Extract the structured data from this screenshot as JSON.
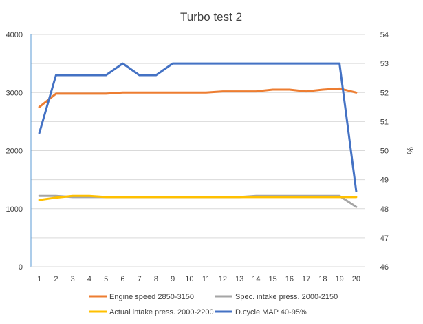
{
  "chart_data": {
    "type": "line",
    "title": "Turbo test 2",
    "categories": [
      "1",
      "2",
      "3",
      "4",
      "5",
      "6",
      "7",
      "8",
      "9",
      "10",
      "11",
      "12",
      "13",
      "14",
      "15",
      "16",
      "17",
      "18",
      "19",
      "20"
    ],
    "y_left": {
      "ylim": [
        0,
        4000
      ],
      "ticks": [
        "0",
        "1000",
        "2000",
        "3000",
        "4000"
      ]
    },
    "y_right": {
      "ylim": [
        46,
        54
      ],
      "ticks": [
        "46",
        "47",
        "48",
        "49",
        "50",
        "51",
        "52",
        "53",
        "54"
      ],
      "label": "%"
    },
    "grid": true,
    "legend_position": "bottom",
    "series": [
      {
        "name": "Engine speed 2850-3150",
        "axis": "left",
        "color": "#ED7D31",
        "values": [
          2750,
          2980,
          2980,
          2980,
          2980,
          3000,
          3000,
          3000,
          3000,
          3000,
          3000,
          3020,
          3020,
          3020,
          3050,
          3050,
          3020,
          3050,
          3070,
          3000
        ]
      },
      {
        "name": "Spec. intake press. 2000-2150",
        "axis": "left",
        "color": "#A5A5A5",
        "values": [
          1220,
          1220,
          1200,
          1200,
          1200,
          1200,
          1200,
          1200,
          1200,
          1200,
          1200,
          1200,
          1200,
          1220,
          1220,
          1220,
          1220,
          1220,
          1220,
          1030
        ]
      },
      {
        "name": "Actual intake press. 2000-2200",
        "axis": "left",
        "color": "#FFC000",
        "values": [
          1150,
          1190,
          1220,
          1220,
          1200,
          1200,
          1200,
          1200,
          1200,
          1200,
          1200,
          1200,
          1200,
          1200,
          1200,
          1200,
          1200,
          1200,
          1200,
          1200
        ]
      },
      {
        "name": "D.cycle MAP 40-95%",
        "axis": "right",
        "color": "#4472C4",
        "values": [
          50.6,
          52.6,
          52.6,
          52.6,
          52.6,
          53.0,
          52.6,
          52.6,
          53.0,
          53.0,
          53.0,
          53.0,
          53.0,
          53.0,
          53.0,
          53.0,
          53.0,
          53.0,
          53.0,
          48.6
        ]
      }
    ]
  }
}
